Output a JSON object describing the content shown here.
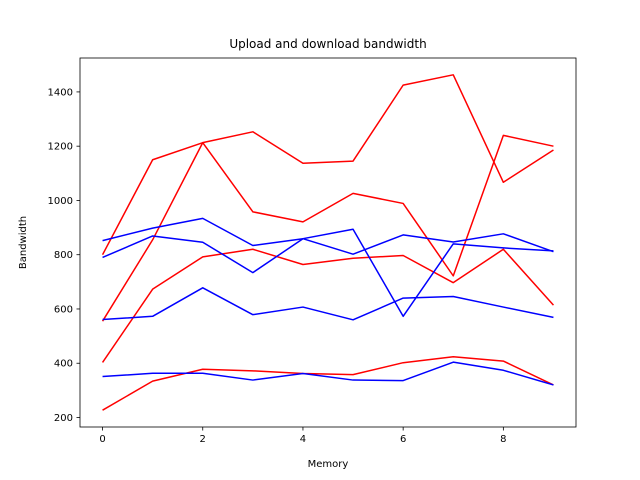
{
  "chart_data": {
    "type": "line",
    "title": "Upload and download bandwidth",
    "xlabel": "Memory",
    "ylabel": "Bandwidth",
    "x": [
      0,
      1,
      2,
      3,
      4,
      5,
      6,
      7,
      8,
      9
    ],
    "xlim": [
      -0.45,
      9.45
    ],
    "ylim": [
      165,
      1525
    ],
    "xticks": [
      0,
      2,
      4,
      6,
      8
    ],
    "yticks": [
      200,
      400,
      600,
      800,
      1000,
      1200,
      1400
    ],
    "grid": false,
    "series": [
      {
        "color": "#ff0000",
        "values": [
          800,
          1150,
          1213,
          1253,
          1137,
          1145,
          1425,
          1463,
          1067,
          1186
        ]
      },
      {
        "color": "#ff0000",
        "values": [
          555,
          855,
          1213,
          958,
          921,
          1026,
          989,
          722,
          1240,
          1200
        ]
      },
      {
        "color": "#ff0000",
        "values": [
          403,
          673,
          792,
          820,
          764,
          787,
          797,
          697,
          820,
          614
        ]
      },
      {
        "color": "#ff0000",
        "values": [
          227,
          334,
          378,
          372,
          362,
          358,
          402,
          424,
          408,
          320
        ]
      },
      {
        "color": "#0000ff",
        "values": [
          852,
          898,
          934,
          834,
          859,
          802,
          873,
          847,
          877,
          811
        ]
      },
      {
        "color": "#0000ff",
        "values": [
          790,
          869,
          846,
          734,
          859,
          894,
          573,
          840,
          825,
          814
        ]
      },
      {
        "color": "#0000ff",
        "values": [
          561,
          573,
          678,
          579,
          607,
          560,
          640,
          646,
          607,
          569
        ]
      },
      {
        "color": "#0000ff",
        "values": [
          351,
          363,
          363,
          338,
          362,
          338,
          336,
          404,
          374,
          320
        ]
      }
    ]
  }
}
